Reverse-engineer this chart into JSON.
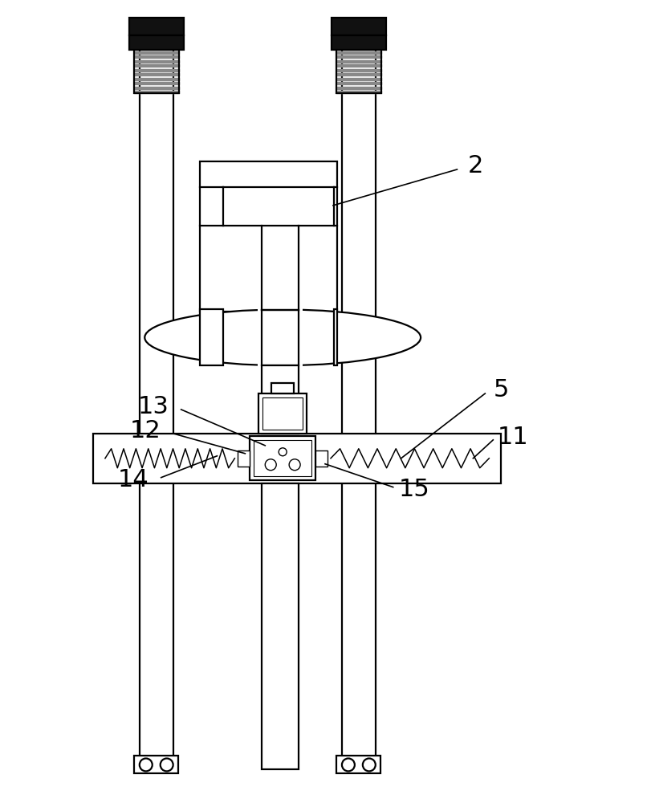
{
  "bg_color": "#ffffff",
  "line_color": "#000000",
  "dark_fill": "#111111",
  "figsize": [
    8.12,
    10.0
  ],
  "dpi": 100,
  "lw": 1.6,
  "lw_thin": 1.0,
  "label_fontsize": 22
}
